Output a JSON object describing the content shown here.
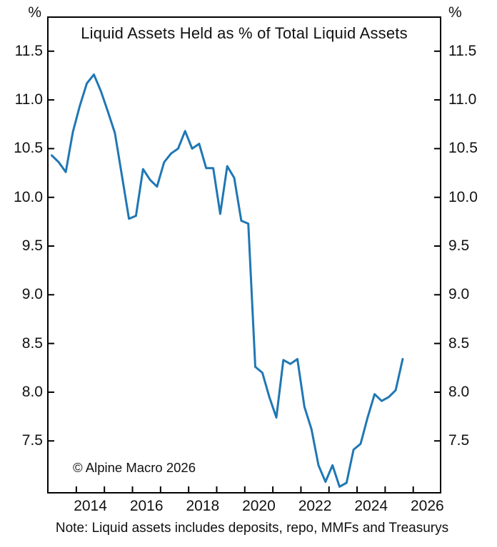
{
  "title": "Liquid Assets Held as % of Total Liquid Assets",
  "axis": {
    "unit_left": "%",
    "unit_right": "%"
  },
  "footer": {
    "copyright": "© Alpine Macro 2026",
    "note": "Note: Liquid assets includes deposits, repo, MMFs and Treasurys"
  },
  "chart_data": {
    "type": "line",
    "title": "Liquid Assets Held as % of Total Liquid Assets",
    "unit": "%",
    "grid": "off",
    "legend": "none",
    "frame": "full-box",
    "line_color": "#1f77b4",
    "x_axis": {
      "xlim": [
        2012.96,
        2027.0
      ],
      "tick_years": [
        2014,
        2015,
        2016,
        2017,
        2018,
        2019,
        2020,
        2021,
        2022,
        2023,
        2024,
        2025,
        2026
      ],
      "label_years": [
        "2014",
        "2016",
        "2018",
        "2020",
        "2022",
        "2024",
        "2026"
      ]
    },
    "y_axis": {
      "ylim": [
        6.96,
        11.857
      ],
      "tick_values": [
        11.5,
        11.0,
        10.5,
        10.0,
        9.5,
        9.0,
        8.5,
        8.0,
        7.5
      ],
      "tick_labels": [
        "11.5",
        "11.0",
        "10.5",
        "10.0",
        "9.5",
        "9.0",
        "8.5",
        "8.0",
        "7.5"
      ]
    },
    "series": [
      {
        "name": "Liquid Assets Held as % of Total Liquid Assets",
        "color": "#1f77b4",
        "frequency": "quarterly",
        "x_start": 2013.125,
        "x_step": 0.25,
        "quarters": [
          "2013Q1",
          "2013Q2",
          "2013Q3",
          "2013Q4",
          "2014Q1",
          "2014Q2",
          "2014Q3",
          "2014Q4",
          "2015Q1",
          "2015Q2",
          "2015Q3",
          "2015Q4",
          "2016Q1",
          "2016Q2",
          "2016Q3",
          "2016Q4",
          "2017Q1",
          "2017Q2",
          "2017Q3",
          "2017Q4",
          "2018Q1",
          "2018Q2",
          "2018Q3",
          "2018Q4",
          "2019Q1",
          "2019Q2",
          "2019Q3",
          "2019Q4",
          "2020Q1",
          "2020Q2",
          "2020Q3",
          "2020Q4",
          "2021Q1",
          "2021Q2",
          "2021Q3",
          "2021Q4",
          "2022Q1",
          "2022Q2",
          "2022Q3",
          "2022Q4",
          "2023Q1",
          "2023Q2",
          "2023Q3",
          "2023Q4",
          "2024Q1",
          "2024Q2",
          "2024Q3",
          "2024Q4",
          "2025Q1",
          "2025Q2",
          "2025Q3"
        ],
        "values": [
          10.43,
          10.36,
          10.26,
          10.67,
          10.94,
          11.17,
          11.26,
          11.09,
          10.88,
          10.66,
          10.22,
          9.78,
          9.81,
          10.29,
          10.18,
          10.11,
          10.36,
          10.45,
          10.5,
          10.68,
          10.5,
          10.55,
          10.3,
          10.3,
          9.83,
          10.32,
          10.2,
          9.76,
          9.73,
          8.26,
          8.2,
          7.95,
          7.74,
          8.33,
          8.29,
          8.34,
          7.85,
          7.62,
          7.25,
          7.08,
          7.25,
          7.03,
          7.07,
          7.41,
          7.47,
          7.74,
          7.98,
          7.91,
          7.95,
          8.02,
          8.34
        ]
      }
    ]
  }
}
